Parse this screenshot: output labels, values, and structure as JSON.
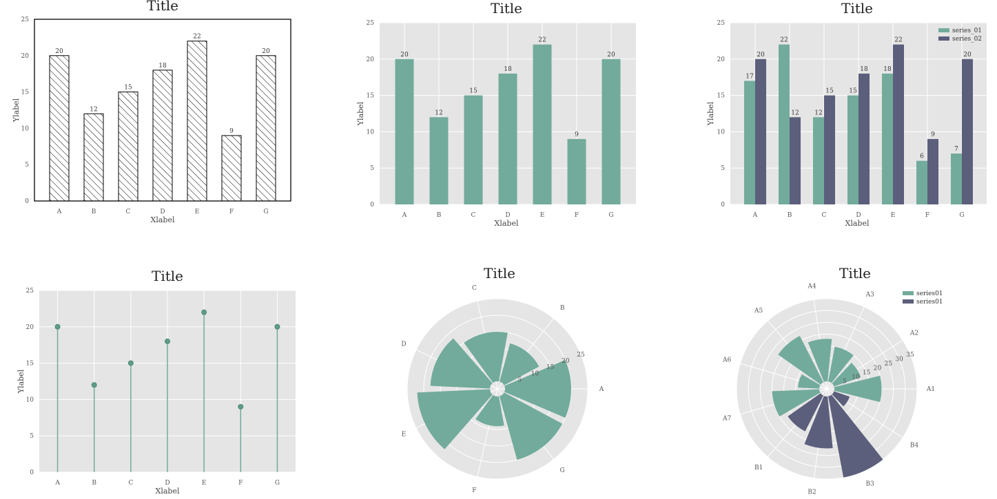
{
  "palette": {
    "teal": "#72ab9b",
    "navy": "#5b5f7b",
    "panel_bg": "#e5e5e5",
    "grid": "#ffffff"
  },
  "chart_data": [
    {
      "type": "bar",
      "style": "hatched",
      "title": "Title",
      "xlabel": "Xlabel",
      "ylabel": "Ylabel",
      "categories": [
        "A",
        "B",
        "C",
        "D",
        "E",
        "F",
        "G"
      ],
      "values": [
        20,
        12,
        15,
        18,
        22,
        9,
        20
      ],
      "ylim": [
        0,
        25
      ],
      "yticks": [
        0,
        5,
        10,
        15,
        20,
        25
      ],
      "grid": false
    },
    {
      "type": "bar",
      "title": "Title",
      "xlabel": "Xlabel",
      "ylabel": "Ylabel",
      "categories": [
        "A",
        "B",
        "C",
        "D",
        "E",
        "F",
        "G"
      ],
      "values": [
        20,
        12,
        15,
        18,
        22,
        9,
        20
      ],
      "ylim": [
        0,
        25
      ],
      "yticks": [
        0,
        5,
        10,
        15,
        20,
        25
      ],
      "grid": true
    },
    {
      "type": "bar",
      "grouped": true,
      "title": "Title",
      "xlabel": "Xlabel",
      "ylabel": "Ylabel",
      "categories": [
        "A",
        "B",
        "C",
        "D",
        "E",
        "F",
        "G"
      ],
      "series": [
        {
          "name": "series_01",
          "values": [
            17,
            22,
            12,
            15,
            18,
            6,
            7
          ]
        },
        {
          "name": "series_02",
          "values": [
            20,
            12,
            15,
            18,
            22,
            9,
            20
          ]
        }
      ],
      "ylim": [
        0,
        25
      ],
      "yticks": [
        0,
        5,
        10,
        15,
        20,
        25
      ],
      "legend": "top-right",
      "grid": true
    },
    {
      "type": "stem",
      "title": "Title",
      "xlabel": "Xlabel",
      "ylabel": "Ylabel",
      "categories": [
        "A",
        "B",
        "C",
        "D",
        "E",
        "F",
        "G"
      ],
      "values": [
        20,
        12,
        15,
        18,
        22,
        9,
        20
      ],
      "ylim": [
        0,
        25
      ],
      "yticks": [
        0,
        5,
        10,
        15,
        20,
        25
      ],
      "grid": true
    },
    {
      "type": "polar-bar",
      "title": "Title",
      "categories": [
        "A",
        "B",
        "C",
        "D",
        "E",
        "F",
        "G"
      ],
      "values": [
        20,
        12,
        15,
        18,
        22,
        9,
        20
      ],
      "rlim": [
        0,
        25
      ],
      "rticks": [
        5,
        10,
        15,
        20,
        25
      ]
    },
    {
      "type": "polar-bar",
      "title": "Title",
      "categories": [
        "A1",
        "A2",
        "A3",
        "A4",
        "A5",
        "A6",
        "A7",
        "B1",
        "B2",
        "B3",
        "B4"
      ],
      "series": [
        {
          "name": "series01",
          "values": [
            20,
            12,
            15,
            18,
            22,
            9,
            20,
            null,
            null,
            null,
            null
          ]
        },
        {
          "name": "series01",
          "values": [
            null,
            null,
            null,
            null,
            null,
            null,
            null,
            17,
            22,
            35,
            7
          ]
        }
      ],
      "rlim": [
        0,
        35
      ],
      "rticks": [
        5,
        10,
        15,
        20,
        25,
        30,
        35
      ],
      "legend": "top-right"
    }
  ]
}
